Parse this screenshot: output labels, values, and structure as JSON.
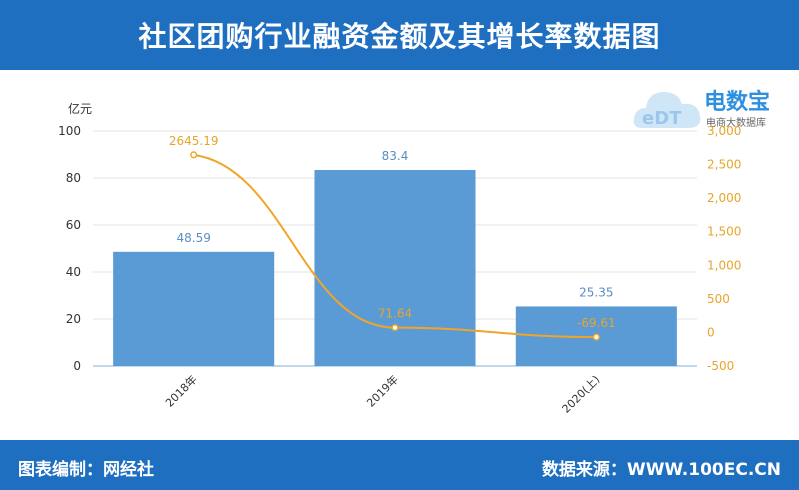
{
  "header": {
    "title": "社区团购行业融资金额及其增长率数据图"
  },
  "footer": {
    "left": "图表编制：网经社",
    "right": "数据来源：WWW.100EC.CN"
  },
  "logo": {
    "mark_text": "eDT",
    "brand": "电数宝",
    "sub": "电商大数据库",
    "icon": "cloud-logo-icon"
  },
  "colors": {
    "header": "#1f6fc1",
    "bar": "#5b9bd5",
    "line": "#f0a52a",
    "bar_label": "#5b8ec4",
    "line_label": "#e7a52c"
  },
  "chart_data": {
    "type": "bar+line",
    "categories": [
      "2018年",
      "2019年",
      "2020(上)"
    ],
    "series": [
      {
        "type": "bar",
        "axis": "left",
        "values": [
          48.59,
          83.4,
          25.35
        ]
      },
      {
        "type": "line",
        "axis": "right",
        "values": [
          2645.19,
          71.64,
          -69.61
        ]
      }
    ],
    "bar_labels": [
      "48.59",
      "83.4",
      "25.35"
    ],
    "line_labels": [
      "2645.19",
      "71.64",
      "-69.61"
    ],
    "ylabel_left": "亿元",
    "ylim_left": [
      0,
      100
    ],
    "yticks_left": [
      "0",
      "20",
      "40",
      "60",
      "80",
      "100"
    ],
    "ylim_right": [
      -500,
      3000
    ],
    "yticks_right": [
      "-500",
      "0",
      "500",
      "1,000",
      "1,500",
      "2,000",
      "2,500",
      "3,000"
    ],
    "grid": true,
    "legend": "none"
  }
}
